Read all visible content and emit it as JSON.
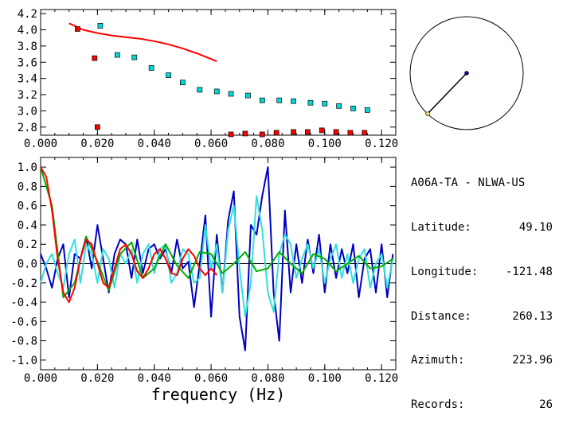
{
  "station": {
    "title": "A06A-TA - NLWA-US",
    "fields": [
      {
        "label": "Latitude:",
        "value": "49.10"
      },
      {
        "label": "Longitude:",
        "value": "-121.48"
      },
      {
        "label": "Distance:",
        "value": "260.13"
      },
      {
        "label": "Azimuth:",
        "value": "223.96"
      },
      {
        "label": "Records:",
        "value": "26"
      }
    ]
  },
  "chart_data": [
    {
      "type": "scatter",
      "xlim": [
        0.0,
        0.125
      ],
      "ylim": [
        2.7,
        4.25
      ],
      "xticks": [
        "0.000",
        "0.020",
        "0.040",
        "0.060",
        "0.080",
        "0.100",
        "0.120"
      ],
      "yticks": [
        "2.8",
        "3.0",
        "3.2",
        "3.4",
        "3.6",
        "3.8",
        "4.0",
        "4.2"
      ],
      "series": [
        {
          "color": "#ff0000",
          "kind": "line",
          "x": [
            0.01,
            0.015,
            0.02,
            0.025,
            0.03,
            0.035,
            0.04,
            0.045,
            0.05,
            0.055,
            0.06,
            0.062
          ],
          "y": [
            4.08,
            4.0,
            3.96,
            3.93,
            3.91,
            3.89,
            3.86,
            3.82,
            3.77,
            3.71,
            3.64,
            3.61
          ]
        },
        {
          "color": "#00d8d8",
          "kind": "points",
          "x": [
            0.021,
            0.027,
            0.033,
            0.039,
            0.045,
            0.05,
            0.056,
            0.062,
            0.067,
            0.073,
            0.078,
            0.084,
            0.089,
            0.095,
            0.1,
            0.105,
            0.11,
            0.115
          ],
          "y": [
            4.05,
            3.69,
            3.66,
            3.53,
            3.44,
            3.35,
            3.26,
            3.24,
            3.21,
            3.19,
            3.13,
            3.13,
            3.12,
            3.1,
            3.09,
            3.06,
            3.03,
            3.01
          ]
        },
        {
          "color": "#ff0000",
          "kind": "points",
          "x": [
            0.013,
            0.019,
            0.02,
            0.067,
            0.072,
            0.078,
            0.083,
            0.089,
            0.094,
            0.099,
            0.104,
            0.109,
            0.114
          ],
          "y": [
            4.01,
            3.65,
            2.8,
            2.71,
            2.72,
            2.71,
            2.73,
            2.74,
            2.74,
            2.76,
            2.74,
            2.73,
            2.73
          ]
        }
      ]
    },
    {
      "type": "line",
      "xlabel": "frequency (Hz)",
      "xlim": [
        0.0,
        0.125
      ],
      "ylim": [
        -1.1,
        1.1
      ],
      "xticks": [
        "0.000",
        "0.020",
        "0.040",
        "0.060",
        "0.080",
        "0.100",
        "0.120"
      ],
      "yticks": [
        "-1.0",
        "-0.8",
        "-0.6",
        "-0.4",
        "-0.2",
        "0.0",
        "0.2",
        "0.4",
        "0.6",
        "0.8",
        "1.0"
      ],
      "series": [
        {
          "color": "#0000c0",
          "x": [
            0.0,
            0.002,
            0.004,
            0.006,
            0.008,
            0.01,
            0.012,
            0.014,
            0.016,
            0.018,
            0.02,
            0.022,
            0.024,
            0.026,
            0.028,
            0.03,
            0.032,
            0.034,
            0.036,
            0.038,
            0.04,
            0.042,
            0.044,
            0.046,
            0.048,
            0.05,
            0.052,
            0.054,
            0.056,
            0.058,
            0.06,
            0.062,
            0.064,
            0.066,
            0.068,
            0.07,
            0.072,
            0.074,
            0.076,
            0.078,
            0.08,
            0.082,
            0.084,
            0.086,
            0.088,
            0.09,
            0.092,
            0.094,
            0.096,
            0.098,
            0.1,
            0.102,
            0.104,
            0.106,
            0.108,
            0.11,
            0.112,
            0.114,
            0.116,
            0.118,
            0.12,
            0.122,
            0.124
          ],
          "y": [
            0.1,
            -0.05,
            -0.25,
            0.05,
            0.2,
            -0.35,
            0.1,
            0.05,
            0.28,
            -0.05,
            0.4,
            0.05,
            -0.3,
            0.1,
            0.25,
            0.2,
            -0.15,
            0.25,
            -0.1,
            0.15,
            0.2,
            0.05,
            0.15,
            -0.1,
            0.25,
            -0.05,
            0.02,
            -0.45,
            0.0,
            0.5,
            -0.55,
            0.3,
            -0.3,
            0.45,
            0.75,
            -0.55,
            -0.9,
            0.4,
            0.3,
            0.7,
            1.0,
            -0.3,
            -0.8,
            0.55,
            -0.3,
            0.2,
            -0.2,
            0.25,
            -0.1,
            0.3,
            -0.3,
            0.2,
            -0.15,
            0.15,
            -0.1,
            0.2,
            -0.35,
            0.05,
            0.15,
            -0.3,
            0.2,
            -0.35,
            0.1
          ]
        },
        {
          "color": "#30e0e0",
          "x": [
            0.0,
            0.002,
            0.004,
            0.006,
            0.008,
            0.01,
            0.012,
            0.014,
            0.016,
            0.018,
            0.02,
            0.022,
            0.024,
            0.026,
            0.028,
            0.03,
            0.032,
            0.034,
            0.036,
            0.038,
            0.04,
            0.042,
            0.044,
            0.046,
            0.048,
            0.05,
            0.052,
            0.054,
            0.056,
            0.058,
            0.06,
            0.062,
            0.064,
            0.066,
            0.068,
            0.07,
            0.072,
            0.074,
            0.076,
            0.078,
            0.08,
            0.082,
            0.084,
            0.086,
            0.088,
            0.09,
            0.092,
            0.094,
            0.096,
            0.098,
            0.1,
            0.102,
            0.104,
            0.106,
            0.108,
            0.11,
            0.112,
            0.114,
            0.116,
            0.118,
            0.12,
            0.122,
            0.124
          ],
          "y": [
            -0.2,
            0.0,
            0.1,
            -0.1,
            -0.25,
            0.1,
            0.25,
            -0.2,
            0.2,
            0.1,
            -0.2,
            0.15,
            0.05,
            -0.25,
            0.1,
            0.0,
            0.15,
            -0.2,
            0.1,
            0.2,
            -0.1,
            0.15,
            0.2,
            -0.2,
            -0.1,
            0.15,
            0.1,
            -0.2,
            -0.15,
            0.4,
            -0.05,
            0.2,
            -0.3,
            0.35,
            0.6,
            -0.05,
            -0.55,
            -0.2,
            0.7,
            0.35,
            -0.3,
            -0.5,
            0.1,
            0.3,
            0.2,
            -0.15,
            0.05,
            0.2,
            -0.05,
            0.15,
            -0.2,
            0.05,
            0.2,
            -0.15,
            0.1,
            -0.2,
            0.05,
            0.15,
            -0.25,
            0.0,
            0.1,
            -0.25,
            0.05
          ]
        },
        {
          "color": "#00b000",
          "x": [
            0.0,
            0.004,
            0.008,
            0.012,
            0.016,
            0.02,
            0.024,
            0.028,
            0.032,
            0.036,
            0.04,
            0.044,
            0.048,
            0.052,
            0.056,
            0.06,
            0.064,
            0.068,
            0.072,
            0.076,
            0.08,
            0.084,
            0.088,
            0.092,
            0.096,
            0.1,
            0.104,
            0.108,
            0.112,
            0.116,
            0.12,
            0.124
          ],
          "y": [
            1.0,
            0.6,
            -0.35,
            -0.2,
            0.28,
            0.02,
            -0.28,
            0.1,
            0.22,
            -0.15,
            -0.05,
            0.2,
            -0.02,
            -0.15,
            0.12,
            0.1,
            -0.1,
            0.0,
            0.12,
            -0.08,
            -0.05,
            0.12,
            0.0,
            -0.1,
            0.1,
            0.05,
            -0.08,
            0.0,
            0.08,
            -0.05,
            -0.03,
            0.05
          ]
        },
        {
          "color": "#ff0000",
          "x": [
            0.0,
            0.002,
            0.004,
            0.006,
            0.008,
            0.01,
            0.012,
            0.014,
            0.016,
            0.018,
            0.02,
            0.022,
            0.024,
            0.026,
            0.028,
            0.03,
            0.032,
            0.034,
            0.036,
            0.038,
            0.04,
            0.042,
            0.044,
            0.046,
            0.048,
            0.05,
            0.052,
            0.054,
            0.056,
            0.058,
            0.06,
            0.062
          ],
          "y": [
            1.0,
            0.9,
            0.55,
            0.05,
            -0.3,
            -0.4,
            -0.25,
            0.05,
            0.25,
            0.2,
            0.0,
            -0.2,
            -0.25,
            -0.05,
            0.15,
            0.2,
            0.1,
            -0.08,
            -0.15,
            -0.05,
            0.1,
            0.15,
            0.05,
            -0.1,
            -0.12,
            0.05,
            0.15,
            0.08,
            -0.05,
            -0.12,
            -0.05,
            -0.12
          ]
        }
      ]
    }
  ]
}
